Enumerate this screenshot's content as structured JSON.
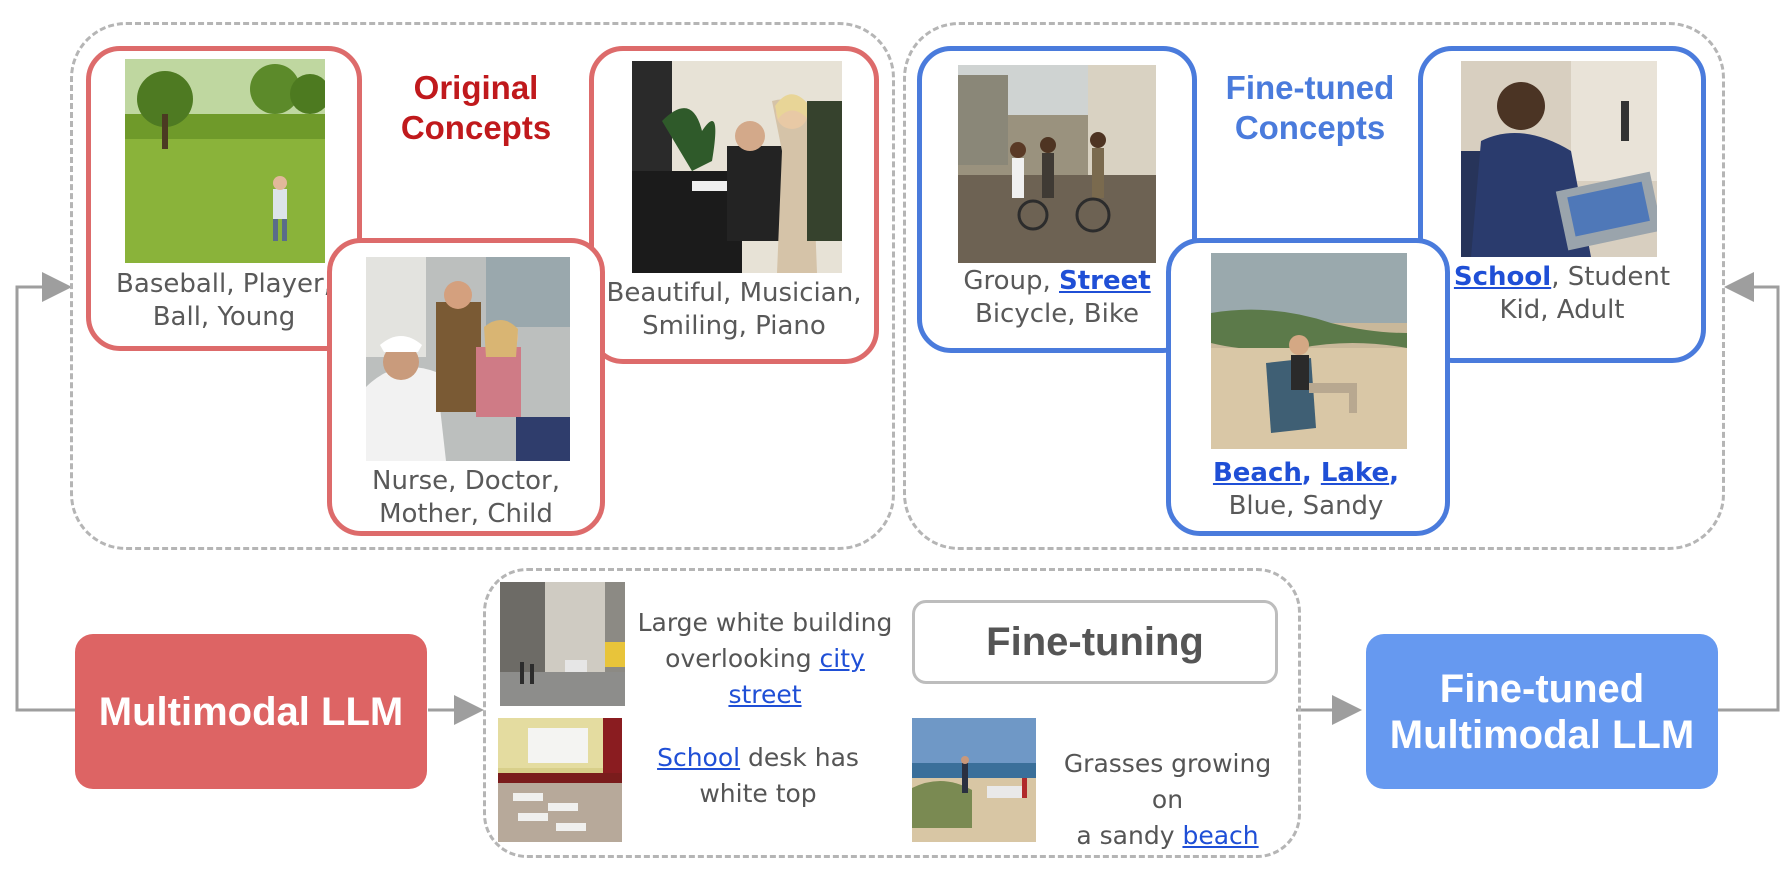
{
  "original_section": {
    "title_line1": "Original",
    "title_line2": "Concepts",
    "cards": [
      {
        "line1": "Baseball, Player,",
        "line2": "Ball, Young",
        "photo": "boy-in-grass-field-photo"
      },
      {
        "line1": "Nurse, Doctor,",
        "line2": "Mother, Child",
        "photo": "nurse-with-child-photo"
      },
      {
        "line1": "Beautiful, Musician,",
        "line2": "Smiling, Piano",
        "photo": "man-playing-piano-photo"
      }
    ]
  },
  "finetuned_section": {
    "title_line1": "Fine-tuned",
    "title_line2": "Concepts",
    "street_card": {
      "pre": "Group, ",
      "keyword": "Street",
      "line2": "Bicycle, Bike"
    },
    "beach_card": {
      "kw1": "Beach",
      "sep": ", ",
      "kw2": "Lake",
      "comma": ",",
      "line2": "Blue, Sandy"
    },
    "school_card": {
      "keyword": "School",
      "post": ", Student",
      "line2": "Kid, Adult"
    }
  },
  "finetuning": {
    "label": "Fine-tuning",
    "examples": [
      {
        "line1": "Large white building",
        "line2_pre": "overlooking ",
        "link": "city street"
      },
      {
        "link": "School",
        "line1_post": " desk has",
        "line2": "white top"
      },
      {
        "line1": "Grasses growing on",
        "line2_pre": "a sandy ",
        "link": "beach"
      }
    ]
  },
  "models": {
    "base": "Multimodal LLM",
    "tuned_line1": "Fine-tuned",
    "tuned_line2": "Multimodal LLM"
  },
  "colors": {
    "red": "#dd6b6b",
    "blue": "#4a7bdc",
    "tuned_box": "#6699f0",
    "base_box": "#dd6464"
  }
}
